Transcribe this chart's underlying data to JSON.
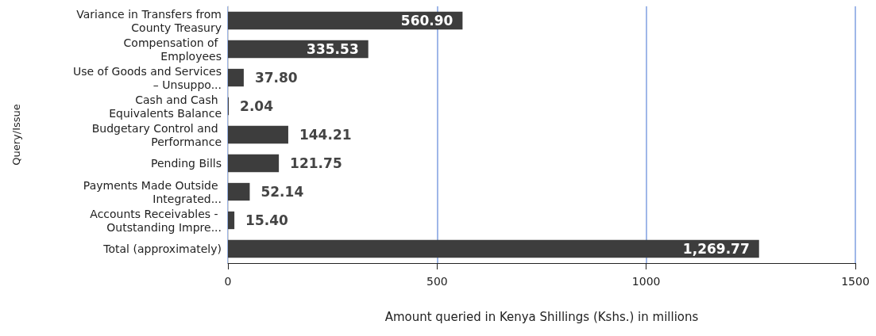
{
  "chart_data": {
    "type": "bar",
    "orientation": "horizontal",
    "xlabel": "Amount queried in Kenya Shillings (Kshs.) in millions",
    "ylabel": "Query/Issue",
    "categories": [
      "Variance in Transfers from County Treasury",
      "Compensation of Employees",
      "Use of Goods and Services – Unsuppo...",
      "Cash and Cash Equivalents Balance",
      "Budgetary Control and Performance",
      "Pending Bills",
      "Payments Made Outside Integrated...",
      "Accounts Receivables - Outstanding Impre...",
      "Total (approximately)"
    ],
    "values": [
      560.9,
      335.53,
      37.8,
      2.04,
      144.21,
      121.75,
      52.14,
      15.4,
      1269.77
    ],
    "value_labels": [
      "560.90",
      "335.53",
      "37.80",
      "2.04",
      "144.21",
      "121.75",
      "52.14",
      "15.40",
      "1,269.77"
    ],
    "color": "#3d3d3d",
    "xlim": [
      0,
      1500
    ],
    "xticks": [
      0,
      500,
      1000,
      1500
    ],
    "grid": "x"
  }
}
